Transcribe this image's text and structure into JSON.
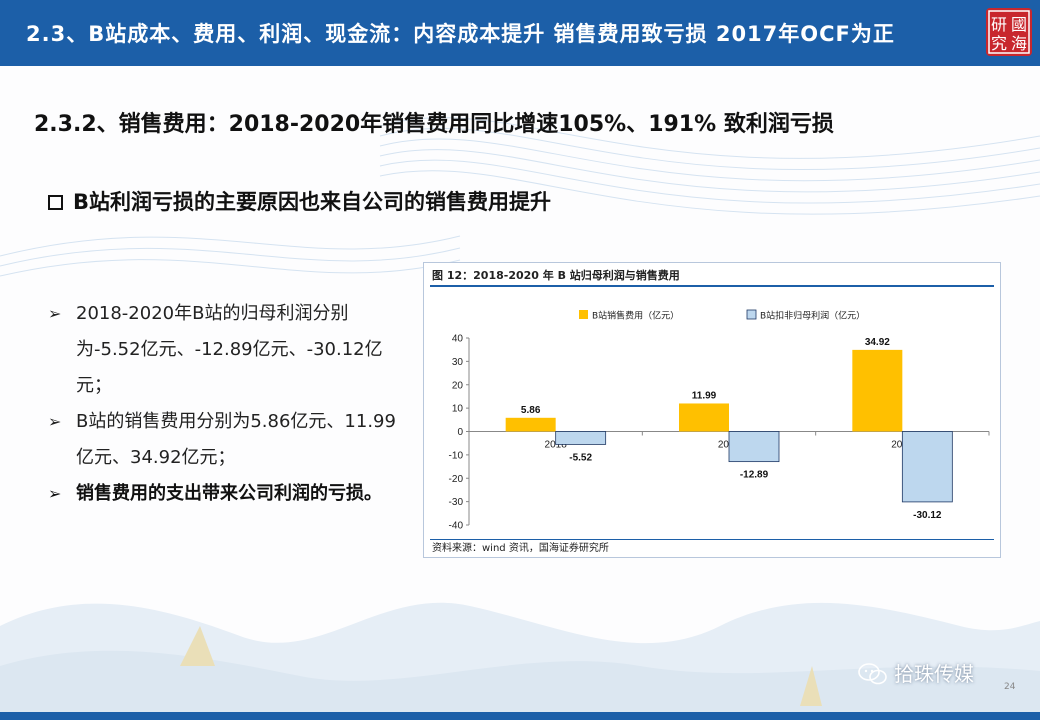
{
  "header": {
    "title": "2.3、B站成本、费用、利润、现金流：内容成本提升 销售费用致亏损  2017年OCF为正",
    "seal_chars": [
      "研",
      "國",
      "究",
      "海"
    ]
  },
  "subheading": "2.3.2、销售费用：2018-2020年销售费用同比增速105%、191% 致利润亏损",
  "bullet_heading": "B站利润亏损的主要原因也来自公司的销售费用提升",
  "points": [
    {
      "text": "2018-2020年B站的归母利润分别为-5.52亿元、-12.89亿元、-30.12亿元；",
      "bold": false
    },
    {
      "text": "B站的销售费用分别为5.86亿元、11.99亿元、34.92亿元；",
      "bold": false
    },
    {
      "text": "销售费用的支出带来公司利润的亏损。",
      "bold": true
    }
  ],
  "chart": {
    "title": "图 12：2018-2020 年 B 站归母利润与销售费用",
    "source": "资料来源：wind 资讯，国海证券研究所"
  },
  "chart_data": {
    "type": "bar",
    "title": "图 12：2018-2020 年 B 站归母利润与销售费用",
    "categories": [
      "2018",
      "2019",
      "2020"
    ],
    "series": [
      {
        "name": "B站销售费用（亿元）",
        "values": [
          5.86,
          11.99,
          34.92
        ],
        "color": "#ffc000"
      },
      {
        "name": "B站扣非归母利润（亿元）",
        "values": [
          -5.52,
          -12.89,
          -30.12
        ],
        "color": "#bdd7ee"
      }
    ],
    "data_labels": {
      "s0": [
        "5.86",
        "11.99",
        "34.92"
      ],
      "s1": [
        "-5.52",
        "-12.89",
        "-30.12"
      ]
    },
    "ylim": [
      -40,
      40
    ],
    "yticks": [
      40,
      30,
      20,
      10,
      0,
      -10,
      -20,
      -30,
      -40
    ],
    "legend_position": "top",
    "grid": false
  },
  "footer": {
    "brand": "拾珠传媒",
    "page": "24"
  },
  "colors": {
    "primary": "#1c5fa8",
    "bar_orange": "#ffc000",
    "bar_blue": "#bdd7ee",
    "seal_red": "#c8272d"
  }
}
